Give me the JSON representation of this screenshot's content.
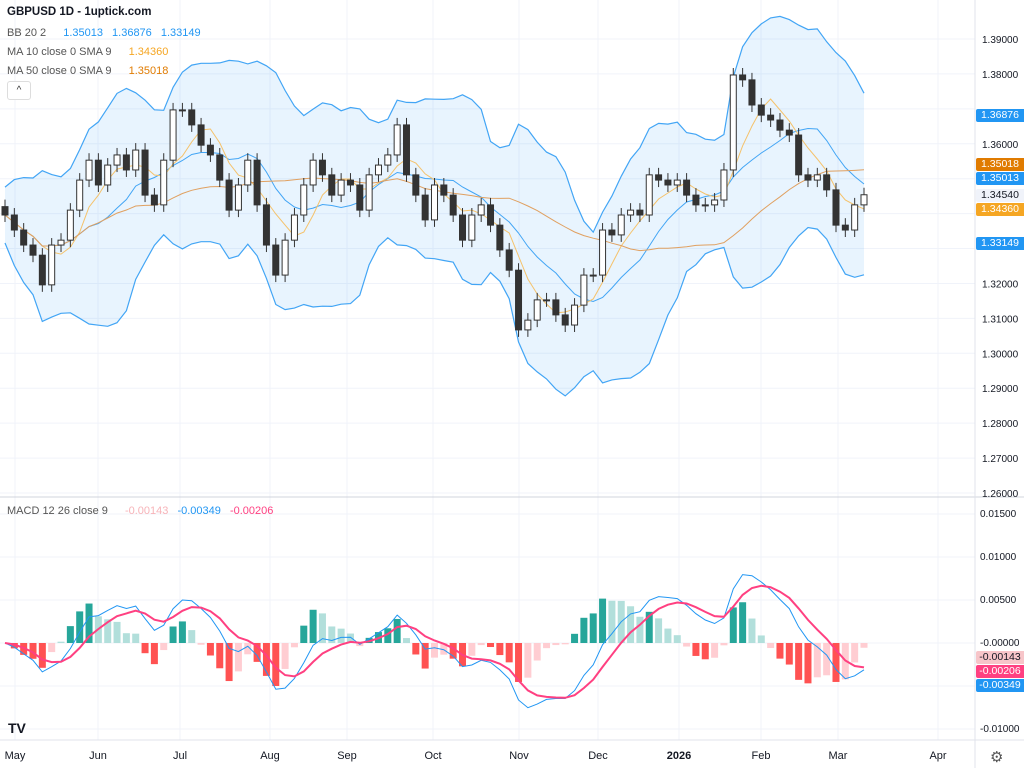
{
  "header": {
    "title": "GBPUSD 1D - 1uptick.com"
  },
  "legend": {
    "bb": {
      "label": "BB 20 2",
      "values": [
        "1.35013",
        "1.36876",
        "1.33149"
      ],
      "color": "#2196f3"
    },
    "ma10": {
      "label": "MA 10 close 0 SMA 9",
      "value": "1.34360",
      "color": "#f5a623"
    },
    "ma50": {
      "label": "MA 50 close 0 SMA 9",
      "value": "1.35018",
      "color": "#e07b00"
    },
    "macd": {
      "label": "MACD 12 26 close 9",
      "values": [
        "-0.00143",
        "-0.00349",
        "-0.00206"
      ],
      "colors": [
        "#f7b3b8",
        "#2196f3",
        "#ff4081"
      ]
    },
    "collapse_icon": "chevron-up-icon"
  },
  "price_axis": {
    "ticks": [
      "1.39000",
      "1.38000",
      "1.36000",
      "1.32000",
      "1.31000",
      "1.30000",
      "1.29000",
      "1.28000",
      "1.27000",
      "1.26000"
    ],
    "tags": [
      {
        "text": "1.36876",
        "color": "#2196f3"
      },
      {
        "text": "1.35018",
        "color": "#e07b00"
      },
      {
        "text": "1.35013",
        "color": "#2196f3"
      },
      {
        "text": "1.34540",
        "color": "#f0f3fa"
      },
      {
        "text": "1.34360",
        "color": "#f5a623"
      },
      {
        "text": "1.33149",
        "color": "#2196f3"
      }
    ]
  },
  "macd_axis": {
    "ticks": [
      "0.01500",
      "0.01000",
      "0.00500",
      "-0.00000",
      "-0.01000"
    ],
    "tags": [
      {
        "text": "-0.00143",
        "color": "#f7c5c9"
      },
      {
        "text": "-0.00206",
        "color": "#ff4081"
      },
      {
        "text": "-0.00349",
        "color": "#2196f3"
      }
    ]
  },
  "time_axis": {
    "labels": [
      "May",
      "Jun",
      "Jul",
      "Aug",
      "Sep",
      "Oct",
      "Nov",
      "Dec",
      "2026",
      "Feb",
      "Mar",
      "Apr"
    ]
  },
  "icons": {
    "logo": "tradingview-logo",
    "settings": "gear-icon"
  },
  "logo_text": "TV",
  "chart_data": {
    "type": "candlestick",
    "symbol": "GBPUSD",
    "interval": "1D",
    "ylim": [
      1.26,
      1.39
    ],
    "macd_ylim": [
      -0.01,
      0.015
    ],
    "x_range": [
      "May",
      "Apr"
    ],
    "grid": true,
    "closes": [
      1.3396,
      1.3353,
      1.331,
      1.3281,
      1.3196,
      1.331,
      1.3324,
      1.341,
      1.3496,
      1.3553,
      1.3482,
      1.3539,
      1.3568,
      1.3525,
      1.3582,
      1.3453,
      1.3425,
      1.3553,
      1.3697,
      1.3697,
      1.3654,
      1.3596,
      1.3568,
      1.3496,
      1.341,
      1.3482,
      1.3553,
      1.3425,
      1.331,
      1.3224,
      1.3324,
      1.3396,
      1.3482,
      1.3553,
      1.3511,
      1.3453,
      1.3496,
      1.3482,
      1.341,
      1.3511,
      1.3539,
      1.3568,
      1.3654,
      1.3511,
      1.3453,
      1.3382,
      1.3482,
      1.3453,
      1.3396,
      1.3324,
      1.3396,
      1.3425,
      1.3367,
      1.3296,
      1.3238,
      1.3067,
      1.3095,
      1.3153,
      1.3153,
      1.311,
      1.3081,
      1.3138,
      1.3224,
      1.3224,
      1.3353,
      1.3339,
      1.3396,
      1.341,
      1.3396,
      1.3511,
      1.3496,
      1.3482,
      1.3496,
      1.3453,
      1.3425,
      1.3425,
      1.3439,
      1.3525,
      1.3797,
      1.3783,
      1.3711,
      1.3682,
      1.3668,
      1.3639,
      1.3625,
      1.3511,
      1.3496,
      1.3511,
      1.3468,
      1.3367,
      1.3353,
      1.3425,
      1.3454
    ],
    "opens": [
      1.342,
      1.3396,
      1.3353,
      1.331,
      1.3281,
      1.3196,
      1.331,
      1.3324,
      1.341,
      1.3496,
      1.3553,
      1.3482,
      1.3539,
      1.3568,
      1.3525,
      1.3582,
      1.3453,
      1.3425,
      1.3553,
      1.3697,
      1.3697,
      1.3654,
      1.3596,
      1.3568,
      1.3496,
      1.341,
      1.3482,
      1.3553,
      1.3425,
      1.331,
      1.3224,
      1.3324,
      1.3396,
      1.3482,
      1.3553,
      1.3511,
      1.3453,
      1.3496,
      1.3482,
      1.341,
      1.3511,
      1.3539,
      1.3568,
      1.3654,
      1.3511,
      1.3453,
      1.3382,
      1.3482,
      1.3453,
      1.3396,
      1.3324,
      1.3396,
      1.3425,
      1.3367,
      1.3296,
      1.3238,
      1.3067,
      1.3095,
      1.3153,
      1.3153,
      1.311,
      1.3081,
      1.3138,
      1.3224,
      1.3224,
      1.3353,
      1.3339,
      1.3396,
      1.341,
      1.3396,
      1.3511,
      1.3496,
      1.3482,
      1.3496,
      1.3453,
      1.3425,
      1.3425,
      1.3439,
      1.3525,
      1.3797,
      1.3783,
      1.3711,
      1.3682,
      1.3668,
      1.3639,
      1.3625,
      1.3511,
      1.3496,
      1.3511,
      1.3468,
      1.3367,
      1.3353,
      1.3425
    ],
    "wick": 0.002
  }
}
